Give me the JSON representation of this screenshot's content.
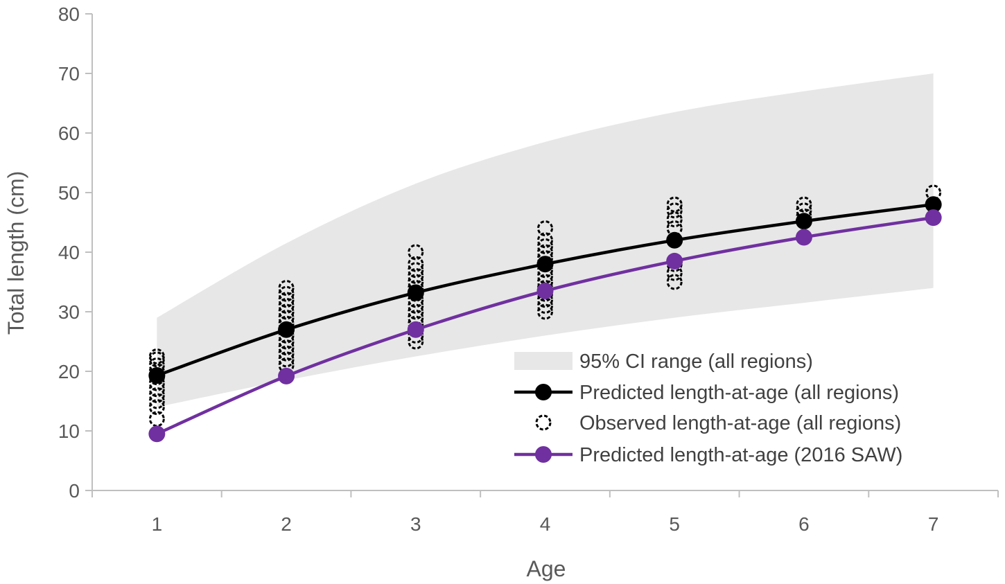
{
  "chart_data": {
    "type": "line",
    "title": "",
    "xlabel": "Age",
    "ylabel": "Total length (cm)",
    "xlim": [
      0.5,
      7.5
    ],
    "ylim": [
      0,
      80
    ],
    "x_ticks": [
      "1",
      "2",
      "3",
      "4",
      "5",
      "6",
      "7"
    ],
    "y_ticks": [
      "0",
      "10",
      "20",
      "30",
      "40",
      "50",
      "60",
      "70",
      "80"
    ],
    "grid": false,
    "legend_position": "bottom-right",
    "series": [
      {
        "name": "95% CI range (all regions)",
        "kind": "band",
        "x": [
          1,
          2,
          3,
          4,
          5,
          6,
          7
        ],
        "lower": [
          14,
          18.5,
          22.5,
          26,
          29,
          31.5,
          34
        ],
        "upper": [
          29,
          41.5,
          51.5,
          58.5,
          63.5,
          67,
          70
        ],
        "color": "#e7e7e7"
      },
      {
        "name": "Predicted length-at-age (all regions)",
        "kind": "line",
        "x": [
          1,
          2,
          3,
          4,
          5,
          6,
          7
        ],
        "values": [
          19.3,
          27,
          33.2,
          38,
          42,
          45.2,
          48
        ],
        "color": "#000000"
      },
      {
        "name": "Observed length-at-age (all regions)",
        "kind": "scatter",
        "groups": [
          {
            "x": 1,
            "values": [
              12,
              14,
              15,
              16,
              17,
              18,
              19,
              20,
              21,
              22,
              22.5
            ]
          },
          {
            "x": 2,
            "values": [
              21,
              22,
              23,
              24,
              25,
              26,
              27,
              28,
              29,
              30,
              31,
              32,
              33,
              34
            ]
          },
          {
            "x": 3,
            "values": [
              25,
              26,
              27,
              28,
              29,
              30,
              31,
              32,
              33,
              34,
              35,
              36,
              37,
              38,
              40
            ]
          },
          {
            "x": 4,
            "values": [
              30,
              31,
              32,
              33,
              34,
              35,
              36,
              37,
              38,
              39,
              40,
              41,
              42,
              44
            ]
          },
          {
            "x": 5,
            "values": [
              35,
              36.5,
              38,
              44,
              45.5,
              47,
              48
            ]
          },
          {
            "x": 6,
            "values": [
              46,
              47,
              48
            ]
          },
          {
            "x": 7,
            "values": [
              50
            ]
          }
        ],
        "color": "#000000"
      },
      {
        "name": "Predicted length-at-age (2016 SAW)",
        "kind": "line",
        "x": [
          1,
          2,
          3,
          4,
          5,
          6,
          7
        ],
        "values": [
          9.5,
          19.2,
          27,
          33.5,
          38.5,
          42.5,
          45.8
        ],
        "color": "#7030a0"
      }
    ]
  }
}
